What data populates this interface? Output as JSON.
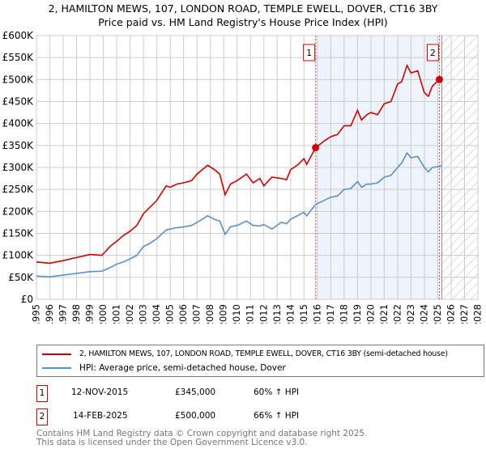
{
  "chart_data": {
    "type": "line",
    "title": "2, HAMILTON MEWS, 107, LONDON ROAD, TEMPLE EWELL, DOVER, CT16 3BY",
    "subtitle": "Price paid vs. HM Land Registry's House Price Index (HPI)",
    "xlim": [
      1995,
      2028
    ],
    "ylim": [
      0,
      600000
    ],
    "yticks": [
      {
        "v": 0,
        "l": "£0"
      },
      {
        "v": 50000,
        "l": "£50K"
      },
      {
        "v": 100000,
        "l": "£100K"
      },
      {
        "v": 150000,
        "l": "£150K"
      },
      {
        "v": 200000,
        "l": "£200K"
      },
      {
        "v": 250000,
        "l": "£250K"
      },
      {
        "v": 300000,
        "l": "£300K"
      },
      {
        "v": 350000,
        "l": "£350K"
      },
      {
        "v": 400000,
        "l": "£400K"
      },
      {
        "v": 450000,
        "l": "£450K"
      },
      {
        "v": 500000,
        "l": "£500K"
      },
      {
        "v": 550000,
        "l": "£550K"
      },
      {
        "v": 600000,
        "l": "£600K"
      }
    ],
    "xticks": [
      "1995",
      "1996",
      "1997",
      "1998",
      "1999",
      "2000",
      "2001",
      "2002",
      "2003",
      "2004",
      "2005",
      "2006",
      "2007",
      "2008",
      "2009",
      "2010",
      "2011",
      "2012",
      "2013",
      "2014",
      "2015",
      "2016",
      "2017",
      "2018",
      "2019",
      "2020",
      "2021",
      "2022",
      "2023",
      "2024",
      "2025",
      "2026",
      "2027",
      "2028"
    ],
    "grid": true,
    "shaded_range": [
      2015.87,
      2025.12
    ],
    "forecast_hatch_from": 2025.3,
    "series": [
      {
        "name": "2, HAMILTON MEWS, 107, LONDON ROAD, TEMPLE EWELL, DOVER, CT16 3BY (semi-detached house)",
        "color": "#cc0000",
        "x": [
          1995,
          1996,
          1997,
          1998,
          1999,
          1999.9,
          2000.5,
          2001,
          2001.5,
          2002,
          2002.5,
          2003,
          2003.5,
          2004,
          2004.7,
          2005,
          2005.5,
          2006,
          2006.6,
          2007,
          2007.8,
          2008.3,
          2008.7,
          2009.1,
          2009.5,
          2010,
          2010.7,
          2011.2,
          2011.7,
          2012,
          2012.6,
          2013.3,
          2013.7,
          2014,
          2014.5,
          2015,
          2015.2,
          2015.87,
          2016.5,
          2017,
          2017.5,
          2018,
          2018.5,
          2019,
          2019.3,
          2019.7,
          2020,
          2020.5,
          2021,
          2021.5,
          2022,
          2022.3,
          2022.7,
          2023,
          2023.5,
          2024,
          2024.3,
          2024.6,
          2025.12
        ],
        "y": [
          85000,
          82000,
          88000,
          95000,
          102000,
          100000,
          120000,
          132000,
          145000,
          155000,
          168000,
          195000,
          210000,
          225000,
          258000,
          255000,
          262000,
          265000,
          270000,
          285000,
          305000,
          295000,
          285000,
          238000,
          262000,
          270000,
          285000,
          265000,
          275000,
          258000,
          278000,
          275000,
          272000,
          295000,
          305000,
          320000,
          307000,
          345000,
          360000,
          370000,
          375000,
          395000,
          395000,
          430000,
          408000,
          420000,
          425000,
          420000,
          445000,
          450000,
          490000,
          495000,
          532000,
          515000,
          520000,
          470000,
          462000,
          485000,
          500000
        ]
      },
      {
        "name": "HPI: Average price, semi-detached house, Dover",
        "color": "#5b8fd0",
        "x": [
          1995,
          1996,
          1997,
          1998,
          1999,
          1999.9,
          2000.5,
          2001,
          2001.5,
          2002,
          2002.5,
          2003,
          2003.5,
          2004,
          2004.7,
          2005,
          2005.5,
          2006,
          2006.6,
          2007,
          2007.8,
          2008.3,
          2008.7,
          2009.1,
          2009.5,
          2010,
          2010.7,
          2011.2,
          2011.7,
          2012,
          2012.6,
          2013.3,
          2013.7,
          2014,
          2014.5,
          2015,
          2015.2,
          2015.87,
          2016.5,
          2017,
          2017.5,
          2018,
          2018.5,
          2019,
          2019.3,
          2019.7,
          2020,
          2020.5,
          2021,
          2021.5,
          2022,
          2022.3,
          2022.7,
          2023,
          2023.5,
          2024,
          2024.3,
          2024.6,
          2025.12,
          2025.3
        ],
        "y": [
          53000,
          51000,
          55000,
          59000,
          63000,
          64000,
          72000,
          80000,
          85000,
          92000,
          100000,
          120000,
          128000,
          138000,
          158000,
          160000,
          163000,
          165000,
          168000,
          175000,
          190000,
          182000,
          178000,
          148000,
          165000,
          168000,
          178000,
          168000,
          167000,
          170000,
          160000,
          175000,
          172000,
          182000,
          190000,
          198000,
          190000,
          216000,
          225000,
          232000,
          235000,
          250000,
          252000,
          268000,
          255000,
          262000,
          262000,
          265000,
          278000,
          282000,
          300000,
          310000,
          333000,
          322000,
          325000,
          300000,
          290000,
          300000,
          302000,
          305000
        ]
      }
    ],
    "annotations": [
      {
        "label": "1",
        "x": 2015.87,
        "y": 345000
      },
      {
        "label": "2",
        "x": 2025.12,
        "y": 500000
      }
    ]
  },
  "legend": {
    "items": [
      "2, HAMILTON MEWS, 107, LONDON ROAD, TEMPLE EWELL, DOVER, CT16 3BY (semi-detached house)",
      "HPI: Average price, semi-detached house, Dover"
    ]
  },
  "transactions": [
    {
      "num": "1",
      "date": "12-NOV-2015",
      "price": "£345,000",
      "hpi": "60% ↑ HPI"
    },
    {
      "num": "2",
      "date": "14-FEB-2025",
      "price": "£500,000",
      "hpi": "66% ↑ HPI"
    }
  ],
  "footer": {
    "line1": "Contains HM Land Registry data © Crown copyright and database right 2025.",
    "line2": "This data is licensed under the Open Government Licence v3.0."
  }
}
